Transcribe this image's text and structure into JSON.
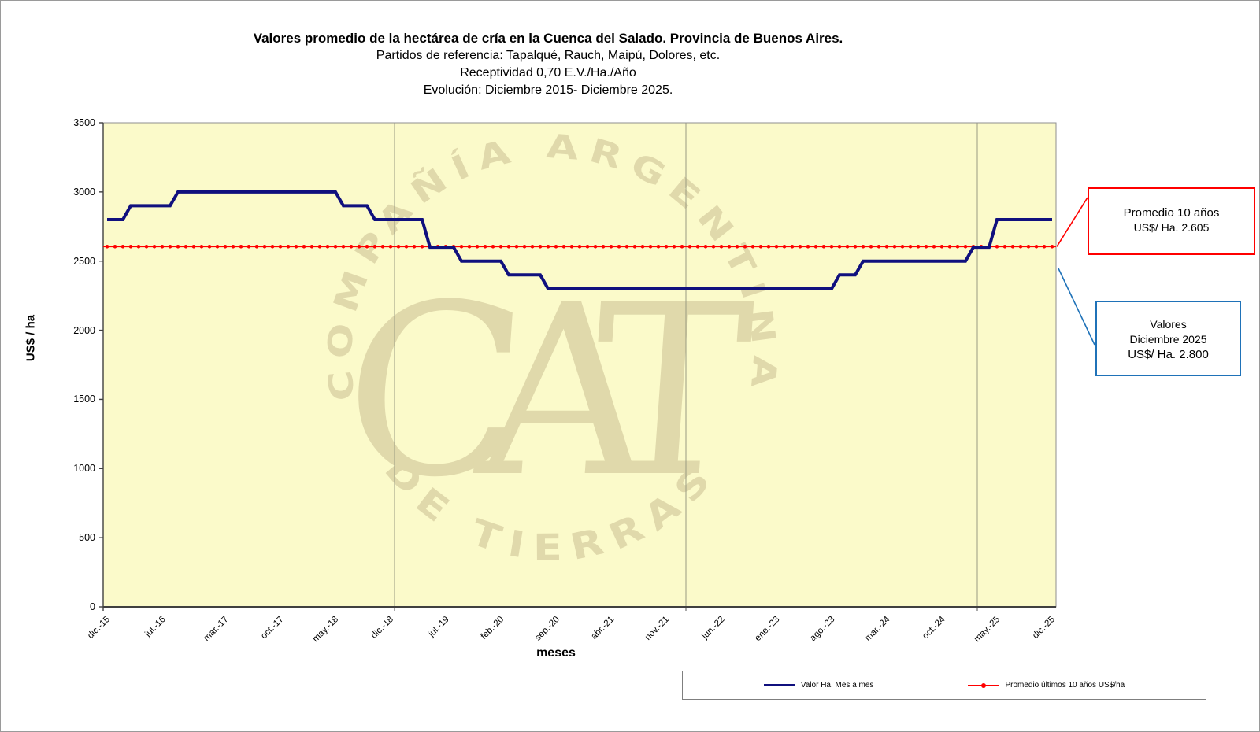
{
  "header": {
    "title": "Valores promedio de la hectárea de cría en la Cuenca del Salado. Provincia de Buenos Aires.",
    "subtitle1": "Partidos de referencia: Tapalqué, Rauch, Maipú, Dolores, etc.",
    "subtitle2": "Receptividad 0,70 E.V./Ha./Año",
    "subtitle3": "Evolución: Diciembre 2015- Diciembre 2025."
  },
  "watermark": {
    "arc_top": "COMPAÑÍA ARGENTINA",
    "arc_bottom": "DE TIERRAS",
    "monogram": "CAT",
    "color": "#E0D9AB"
  },
  "annotations": {
    "promedio_box": {
      "line1": "Promedio 10 años",
      "line2": "US$/ Ha. 2.605",
      "border_color": "#FF0000"
    },
    "valores_box": {
      "line1": "Valores",
      "line2": "Diciembre 2025",
      "line3": "US$/ Ha. 2.800",
      "border_color": "#1F72B8"
    }
  },
  "chart_data": {
    "type": "line",
    "xlabel": "meses",
    "ylabel": "US$ / ha",
    "ylim": [
      0,
      3500
    ],
    "y_ticks": [
      0,
      500,
      1000,
      1500,
      2000,
      2500,
      3000,
      3500
    ],
    "x_months_start": "dic.-15",
    "x_months_end": "dic.-25",
    "n_points": 121,
    "x_tick_labels": [
      "dic.-15",
      "jul.-16",
      "mar.-17",
      "oct.-17",
      "may.-18",
      "dic.-18",
      "jul.-19",
      "feb.-20",
      "sep.-20",
      "abr.-21",
      "nov.-21",
      "jun.-22",
      "ene.-23",
      "ago.-23",
      "mar.-24",
      "oct.-24",
      "may.-25",
      "dic.-25"
    ],
    "x_tick_month_indices": [
      0,
      7,
      15,
      22,
      29,
      36,
      43,
      50,
      57,
      64,
      71,
      78,
      85,
      92,
      99,
      106,
      113,
      120
    ],
    "gridline_month_boundaries": [
      37,
      74,
      111
    ],
    "plot_bg": "#FBFACA",
    "legend_position": "bottom",
    "series": [
      {
        "name": "Valor Ha. Mes a mes",
        "color": "#10107E",
        "values": [
          2800,
          2800,
          2800,
          2900,
          2900,
          2900,
          2900,
          2900,
          2900,
          3000,
          3000,
          3000,
          3000,
          3000,
          3000,
          3000,
          3000,
          3000,
          3000,
          3000,
          3000,
          3000,
          3000,
          3000,
          3000,
          3000,
          3000,
          3000,
          3000,
          3000,
          2900,
          2900,
          2900,
          2900,
          2800,
          2800,
          2800,
          2800,
          2800,
          2800,
          2800,
          2600,
          2600,
          2600,
          2600,
          2500,
          2500,
          2500,
          2500,
          2500,
          2500,
          2400,
          2400,
          2400,
          2400,
          2400,
          2300,
          2300,
          2300,
          2300,
          2300,
          2300,
          2300,
          2300,
          2300,
          2300,
          2300,
          2300,
          2300,
          2300,
          2300,
          2300,
          2300,
          2300,
          2300,
          2300,
          2300,
          2300,
          2300,
          2300,
          2300,
          2300,
          2300,
          2300,
          2300,
          2300,
          2300,
          2300,
          2300,
          2300,
          2300,
          2300,
          2300,
          2400,
          2400,
          2400,
          2500,
          2500,
          2500,
          2500,
          2500,
          2500,
          2500,
          2500,
          2500,
          2500,
          2500,
          2500,
          2500,
          2500,
          2600,
          2600,
          2600,
          2800,
          2800,
          2800,
          2800,
          2800,
          2800,
          2800,
          2800
        ]
      },
      {
        "name": "Promedio últimos 10 años US$/ha",
        "color": "#FF0000",
        "style": "line-with-dot-markers",
        "value": 2605
      }
    ]
  }
}
